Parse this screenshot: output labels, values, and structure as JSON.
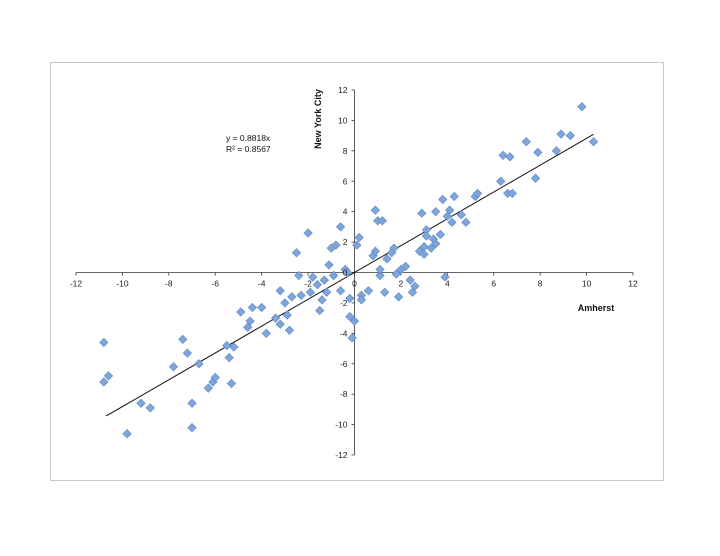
{
  "chart_data": {
    "type": "scatter",
    "title": "",
    "xlabel": "Amherst",
    "ylabel": "New York City",
    "xlim": [
      -12,
      12
    ],
    "ylim": [
      -12,
      12
    ],
    "x_ticks": [
      -12,
      -10,
      -8,
      -6,
      -4,
      -2,
      0,
      2,
      4,
      6,
      8,
      10,
      12
    ],
    "y_ticks": [
      -12,
      -10,
      -8,
      -6,
      -4,
      -2,
      0,
      2,
      4,
      6,
      8,
      10,
      12
    ],
    "x_tick_labels": [
      "-12",
      "-10",
      "-8",
      "-6",
      "-4",
      "-2",
      "0",
      "2",
      "4",
      "6",
      "8",
      "10",
      "12"
    ],
    "y_tick_labels": [
      "-12",
      "-10",
      "-8",
      "-6",
      "-4",
      "-2",
      "0",
      "2",
      "4",
      "6",
      "8",
      "10",
      "12"
    ],
    "grid": false,
    "marker_color": "#7ea6dc",
    "marker_edge_color": "#5d85bf",
    "trendline": {
      "slope": 0.8818,
      "intercept": 0,
      "x_range": [
        -10.7,
        10.3
      ],
      "equation_label": "y = 0.8818x",
      "r2_label": "R² = 0.8567"
    },
    "series": [
      {
        "points": [
          [
            -10.8,
            -4.6
          ],
          [
            -10.8,
            -7.2
          ],
          [
            -10.6,
            -6.8
          ],
          [
            -9.8,
            -10.6
          ],
          [
            -9.2,
            -8.6
          ],
          [
            -8.8,
            -8.9
          ],
          [
            -7.8,
            -6.2
          ],
          [
            -7.4,
            -4.4
          ],
          [
            -7.2,
            -5.3
          ],
          [
            -7.0,
            -8.6
          ],
          [
            -7.0,
            -10.2
          ],
          [
            -6.7,
            -6.0
          ],
          [
            -6.3,
            -7.6
          ],
          [
            -6.1,
            -7.2
          ],
          [
            -6.0,
            -6.9
          ],
          [
            -5.5,
            -4.8
          ],
          [
            -5.4,
            -5.6
          ],
          [
            -5.3,
            -7.3
          ],
          [
            -5.2,
            -4.9
          ],
          [
            -4.9,
            -2.6
          ],
          [
            -4.6,
            -3.6
          ],
          [
            -4.5,
            -3.2
          ],
          [
            -4.4,
            -2.3
          ],
          [
            -4.0,
            -2.3
          ],
          [
            -3.8,
            -4.0
          ],
          [
            -3.4,
            -3.0
          ],
          [
            -3.2,
            -1.2
          ],
          [
            -3.2,
            -3.4
          ],
          [
            -3.0,
            -2.0
          ],
          [
            -2.9,
            -2.8
          ],
          [
            -2.8,
            -3.8
          ],
          [
            -2.7,
            -1.6
          ],
          [
            -2.5,
            1.3
          ],
          [
            -2.4,
            -0.2
          ],
          [
            -2.3,
            -1.5
          ],
          [
            -2.0,
            2.6
          ],
          [
            -1.9,
            -1.3
          ],
          [
            -1.8,
            -0.3
          ],
          [
            -1.6,
            -0.8
          ],
          [
            -1.5,
            -2.5
          ],
          [
            -1.4,
            -1.8
          ],
          [
            -1.3,
            -0.5
          ],
          [
            -1.2,
            -1.3
          ],
          [
            -1.1,
            0.5
          ],
          [
            -1.0,
            1.6
          ],
          [
            -0.9,
            -0.2
          ],
          [
            -0.8,
            1.8
          ],
          [
            -0.6,
            -1.2
          ],
          [
            -0.6,
            3.0
          ],
          [
            -0.4,
            0.2
          ],
          [
            -0.3,
            0.0
          ],
          [
            -0.2,
            -1.7
          ],
          [
            -0.2,
            -2.9
          ],
          [
            -0.1,
            -4.3
          ],
          [
            0.0,
            -3.2
          ],
          [
            0.1,
            1.8
          ],
          [
            0.2,
            2.3
          ],
          [
            0.3,
            -1.5
          ],
          [
            0.3,
            -1.8
          ],
          [
            0.6,
            -1.2
          ],
          [
            0.8,
            1.1
          ],
          [
            0.9,
            4.1
          ],
          [
            0.9,
            1.4
          ],
          [
            1.0,
            3.4
          ],
          [
            1.1,
            -0.2
          ],
          [
            1.1,
            0.2
          ],
          [
            1.2,
            3.4
          ],
          [
            1.3,
            -1.3
          ],
          [
            1.4,
            0.9
          ],
          [
            1.6,
            1.3
          ],
          [
            1.7,
            1.6
          ],
          [
            1.8,
            -0.1
          ],
          [
            1.9,
            -1.6
          ],
          [
            2.0,
            0.2
          ],
          [
            2.2,
            0.4
          ],
          [
            2.4,
            -0.5
          ],
          [
            2.5,
            -1.3
          ],
          [
            2.6,
            -0.9
          ],
          [
            2.8,
            1.4
          ],
          [
            2.9,
            3.9
          ],
          [
            3.0,
            1.7
          ],
          [
            3.0,
            1.2
          ],
          [
            3.1,
            2.8
          ],
          [
            3.1,
            2.4
          ],
          [
            3.3,
            1.6
          ],
          [
            3.4,
            2.2
          ],
          [
            3.5,
            1.9
          ],
          [
            3.5,
            4.0
          ],
          [
            3.7,
            2.5
          ],
          [
            3.8,
            4.8
          ],
          [
            3.9,
            -0.3
          ],
          [
            4.0,
            3.7
          ],
          [
            4.1,
            4.1
          ],
          [
            4.2,
            3.3
          ],
          [
            4.3,
            5.0
          ],
          [
            4.6,
            3.8
          ],
          [
            4.8,
            3.3
          ],
          [
            5.2,
            5.0
          ],
          [
            5.3,
            5.2
          ],
          [
            6.3,
            6.0
          ],
          [
            6.4,
            7.7
          ],
          [
            6.6,
            5.2
          ],
          [
            6.7,
            7.6
          ],
          [
            6.8,
            5.2
          ],
          [
            7.4,
            8.6
          ],
          [
            7.8,
            6.2
          ],
          [
            7.9,
            7.9
          ],
          [
            8.7,
            8.0
          ],
          [
            8.9,
            9.1
          ],
          [
            9.3,
            9.0
          ],
          [
            9.8,
            10.9
          ],
          [
            10.3,
            8.6
          ]
        ]
      }
    ]
  }
}
